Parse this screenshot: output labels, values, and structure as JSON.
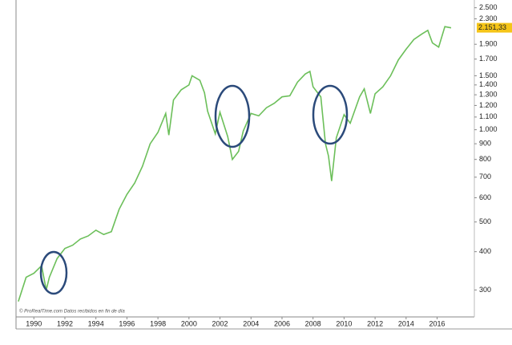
{
  "chart_data": {
    "type": "line",
    "log_scale": true,
    "watermark": "© ProRealTime.com  Datos recibidos en fin de día",
    "x": [
      1989.0,
      1989.5,
      1990.0,
      1990.5,
      1990.8,
      1991.0,
      1991.5,
      1992.0,
      1992.5,
      1993.0,
      1993.5,
      1994.0,
      1994.5,
      1995.0,
      1995.5,
      1996.0,
      1996.5,
      1997.0,
      1997.5,
      1998.0,
      1998.5,
      1998.7,
      1999.0,
      1999.5,
      2000.0,
      2000.2,
      2000.7,
      2001.0,
      2001.2,
      2001.7,
      2002.0,
      2002.5,
      2002.8,
      2003.2,
      2003.5,
      2004.0,
      2004.5,
      2005.0,
      2005.5,
      2006.0,
      2006.5,
      2007.0,
      2007.5,
      2007.8,
      2008.0,
      2008.5,
      2008.8,
      2009.0,
      2009.2,
      2009.5,
      2010.0,
      2010.4,
      2011.0,
      2011.3,
      2011.7,
      2012.0,
      2012.5,
      2013.0,
      2013.5,
      2014.0,
      2014.5,
      2015.0,
      2015.4,
      2015.7,
      2016.1,
      2016.5,
      2016.9
    ],
    "values": [
      275,
      330,
      340,
      360,
      300,
      330,
      380,
      410,
      420,
      440,
      450,
      470,
      455,
      465,
      550,
      615,
      670,
      760,
      900,
      980,
      1130,
      960,
      1250,
      1350,
      1400,
      1500,
      1450,
      1320,
      1150,
      970,
      1140,
      950,
      800,
      850,
      990,
      1130,
      1110,
      1180,
      1220,
      1280,
      1290,
      1430,
      1520,
      1550,
      1380,
      1280,
      900,
      820,
      680,
      940,
      1120,
      1050,
      1280,
      1360,
      1130,
      1310,
      1380,
      1500,
      1690,
      1830,
      1970,
      2050,
      2110,
      1920,
      1860,
      2170,
      2150
    ],
    "color": "#6cbf5a",
    "xlim": [
      1988.85,
      2018.4
    ],
    "xticks": [
      1990,
      1992,
      1994,
      1996,
      1998,
      2000,
      2002,
      2004,
      2006,
      2008,
      2010,
      2012,
      2014,
      2016
    ],
    "ylim": [
      245,
      2650
    ],
    "yticks": [
      {
        "value": 2500,
        "label": "2.500"
      },
      {
        "value": 2300,
        "label": "2.300"
      },
      {
        "value": 1900,
        "label": "1.900"
      },
      {
        "value": 1700,
        "label": "1.700"
      },
      {
        "value": 1500,
        "label": "1.500"
      },
      {
        "value": 1400,
        "label": "1.400"
      },
      {
        "value": 1300,
        "label": "1.300"
      },
      {
        "value": 1200,
        "label": "1.200"
      },
      {
        "value": 1100,
        "label": "1.100"
      },
      {
        "value": 1000,
        "label": "1.000"
      },
      900,
      800,
      700,
      600,
      500,
      400,
      300
    ],
    "last_value": {
      "value": 2151.33,
      "label": "2.151,33",
      "color": "#f5c518"
    }
  }
}
